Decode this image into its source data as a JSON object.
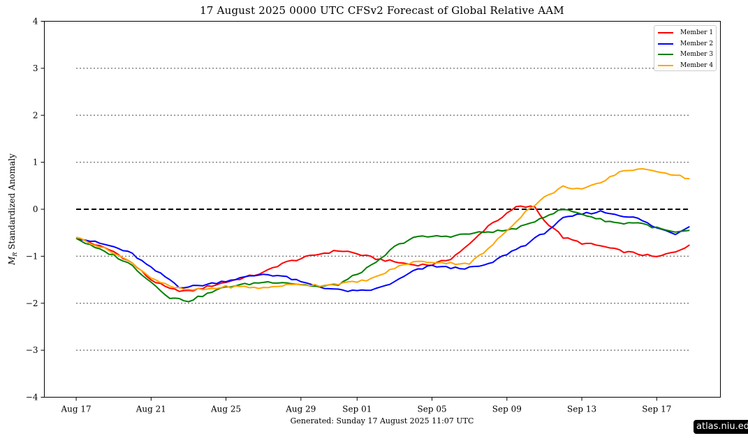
{
  "title": "17  August  2025 0000 UTC   CFSv2 Forecast of Global Relative AAM",
  "generated": "Generated: Sunday  17  August  2025  11:07 UTC",
  "badge": "atlas.niu.edu",
  "chart_data": {
    "type": "line",
    "title": "17  August  2025 0000 UTC   CFSv2 Forecast of Global Relative AAM",
    "xlabel": "",
    "ylabel": "M_R Standardized Anomaly",
    "ylabel_main": "M",
    "ylabel_sub": "R",
    "ylabel_rest": " Standardized Anomaly",
    "ylim": [
      -4,
      4
    ],
    "xlim_days": [
      -1.7,
      34.4
    ],
    "x_unit": "days since Aug 17 2025 00 UTC (4 samples per day)",
    "x_ticks": [
      {
        "day": 0,
        "label": "Aug 17"
      },
      {
        "day": 4,
        "label": "Aug 21"
      },
      {
        "day": 8,
        "label": "Aug 25"
      },
      {
        "day": 12,
        "label": "Aug 29"
      },
      {
        "day": 15,
        "label": "Sep 01"
      },
      {
        "day": 19,
        "label": "Sep 05"
      },
      {
        "day": 23,
        "label": "Sep 09"
      },
      {
        "day": 27,
        "label": "Sep 13"
      },
      {
        "day": 31,
        "label": "Sep 17"
      }
    ],
    "y_ticks": [
      4,
      3,
      2,
      1,
      0,
      -1,
      -2,
      -3,
      -4
    ],
    "y_tick_labels": [
      "4",
      "3",
      "2",
      "1",
      "0",
      "−1",
      "−2",
      "−3",
      "−4"
    ],
    "reference_lines": [
      {
        "y": 0,
        "style": "dashed",
        "color": "#000000"
      },
      {
        "y": 1,
        "style": "dotted",
        "color": "#808080"
      },
      {
        "y": 2,
        "style": "dotted",
        "color": "#808080"
      },
      {
        "y": 3,
        "style": "dotted",
        "color": "#808080"
      },
      {
        "y": -1,
        "style": "dotted",
        "color": "#808080"
      },
      {
        "y": -2,
        "style": "dotted",
        "color": "#808080"
      },
      {
        "y": -3,
        "style": "dotted",
        "color": "#808080"
      }
    ],
    "reference_x_range": [
      0,
      32.75
    ],
    "legend_position": "top-right",
    "grid": false,
    "series": [
      {
        "name": "Member 1",
        "color": "#ff0000",
        "x": [
          0,
          1,
          2,
          3,
          4,
          5,
          6,
          7,
          8,
          9,
          10,
          11,
          12,
          13,
          14,
          14.5,
          15,
          16,
          17,
          18,
          19,
          20,
          21,
          22,
          23,
          23.5,
          24,
          24.5,
          25,
          25.5,
          26,
          27,
          28,
          29,
          30,
          31,
          32,
          32.75
        ],
        "y": [
          -0.6,
          -0.75,
          -0.9,
          -1.15,
          -1.5,
          -1.7,
          -1.75,
          -1.65,
          -1.55,
          -1.45,
          -1.35,
          -1.15,
          -1.05,
          -0.95,
          -0.88,
          -0.9,
          -0.95,
          -1.05,
          -1.12,
          -1.18,
          -1.18,
          -1.05,
          -0.75,
          -0.35,
          -0.1,
          0.05,
          0.05,
          0.05,
          -0.25,
          -0.4,
          -0.6,
          -0.72,
          -0.78,
          -0.88,
          -0.95,
          -1.02,
          -0.9,
          -0.76
        ]
      },
      {
        "name": "Member 2",
        "color": "#0000ff",
        "x": [
          0,
          1,
          2,
          3,
          4,
          5,
          5.5,
          6,
          7,
          8,
          9,
          10,
          11,
          12,
          13,
          14,
          15,
          16,
          17,
          18,
          19,
          20,
          21,
          22,
          23,
          24,
          25,
          25.5,
          26,
          27,
          28,
          29,
          30,
          31,
          32,
          32.75
        ],
        "y": [
          -0.6,
          -0.7,
          -0.8,
          -0.95,
          -1.25,
          -1.5,
          -1.65,
          -1.65,
          -1.6,
          -1.52,
          -1.45,
          -1.38,
          -1.42,
          -1.55,
          -1.65,
          -1.72,
          -1.75,
          -1.7,
          -1.55,
          -1.32,
          -1.2,
          -1.25,
          -1.25,
          -1.18,
          -0.95,
          -0.75,
          -0.5,
          -0.35,
          -0.2,
          -0.1,
          -0.05,
          -0.12,
          -0.2,
          -0.4,
          -0.52,
          -0.37
        ]
      },
      {
        "name": "Member 3",
        "color": "#008000",
        "x": [
          0,
          1,
          2,
          3,
          4,
          5,
          6,
          7,
          8,
          9,
          10,
          11,
          12,
          13,
          14,
          15,
          16,
          17,
          18,
          19,
          20,
          21,
          22,
          23,
          24,
          25,
          26,
          27,
          28,
          29,
          30,
          31,
          32,
          32.75
        ],
        "y": [
          -0.62,
          -0.82,
          -0.98,
          -1.2,
          -1.55,
          -1.88,
          -1.95,
          -1.8,
          -1.65,
          -1.6,
          -1.55,
          -1.55,
          -1.6,
          -1.65,
          -1.6,
          -1.38,
          -1.15,
          -0.8,
          -0.6,
          -0.58,
          -0.57,
          -0.52,
          -0.48,
          -0.45,
          -0.35,
          -0.15,
          0.0,
          -0.1,
          -0.22,
          -0.3,
          -0.28,
          -0.4,
          -0.5,
          -0.45
        ]
      },
      {
        "name": "Member 4",
        "color": "#ffa500",
        "x": [
          0,
          1,
          2,
          3,
          4,
          5,
          6,
          7,
          8,
          9,
          10,
          11,
          12,
          13,
          14,
          15,
          16,
          17,
          18,
          19,
          20,
          21,
          22,
          23,
          24,
          25,
          26,
          27,
          28,
          29,
          30,
          30.5,
          31,
          32,
          32.75
        ],
        "y": [
          -0.6,
          -0.75,
          -0.92,
          -1.15,
          -1.45,
          -1.65,
          -1.72,
          -1.7,
          -1.65,
          -1.65,
          -1.68,
          -1.62,
          -1.6,
          -1.62,
          -1.58,
          -1.55,
          -1.45,
          -1.25,
          -1.12,
          -1.12,
          -1.15,
          -1.15,
          -0.85,
          -0.45,
          -0.05,
          0.25,
          0.48,
          0.43,
          0.55,
          0.8,
          0.86,
          0.82,
          0.82,
          0.73,
          0.65
        ]
      }
    ]
  }
}
